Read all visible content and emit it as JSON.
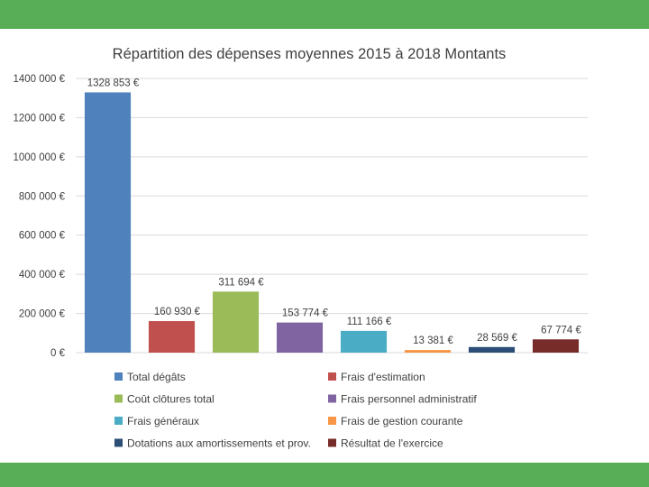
{
  "slide": {
    "band_color": "#57ae57"
  },
  "chart_data": {
    "type": "bar",
    "title": "Répartition des dépenses moyennes 2015 à 2018 Montants",
    "xlabel": "",
    "ylabel": "",
    "ylim": [
      0,
      1400000
    ],
    "yticks": [
      0,
      200000,
      400000,
      600000,
      800000,
      1000000,
      1200000,
      1400000
    ],
    "ytick_labels": [
      "0 €",
      "200 000 €",
      "400 000 €",
      "600 000 €",
      "800 000 €",
      "1000 000 €",
      "1200 000 €",
      "1400 000 €"
    ],
    "grid": true,
    "legend_position": "bottom",
    "categories": [
      "Total dégâts",
      "Frais d'estimation",
      "Coût clôtures total",
      "Frais personnel administratif",
      "Frais généraux",
      "Frais de gestion courante",
      "Dotations aux amortissements et prov.",
      "Résultat de l'exercice"
    ],
    "values": [
      1328853,
      160930,
      311694,
      153774,
      111166,
      13381,
      28569,
      67774
    ],
    "data_labels": [
      "1328 853 €",
      "160 930 €",
      "311 694 €",
      "153 774 €",
      "111 166 €",
      "13 381 €",
      "28 569 €",
      "67 774 €"
    ],
    "colors": [
      "#4f81bd",
      "#c0504d",
      "#9bbb59",
      "#8064a2",
      "#4bacc6",
      "#f79646",
      "#2c4d75",
      "#772c2a"
    ]
  }
}
